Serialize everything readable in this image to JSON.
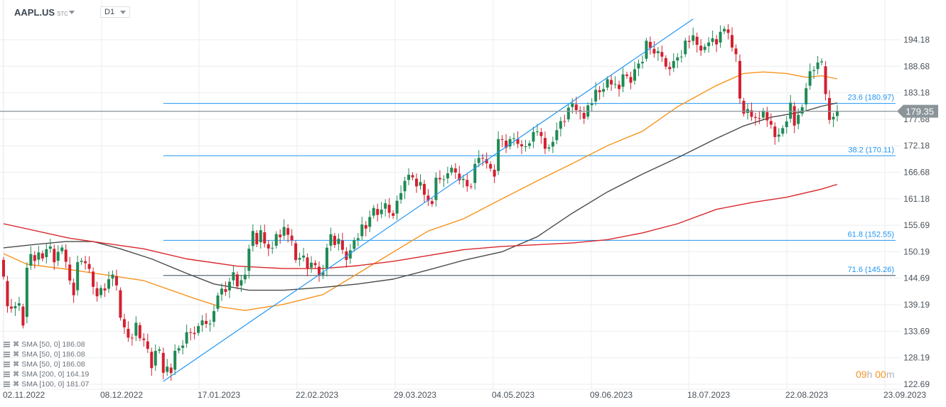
{
  "header": {
    "symbol": "AAPL.US",
    "market": "STC",
    "timeframe": "D1"
  },
  "legend": [
    {
      "label": "SMA [50,  0] 186.08"
    },
    {
      "label": "SMA [50,  0] 186.08"
    },
    {
      "label": "SMA [50,  0] 186.08"
    },
    {
      "label": "SMA [200,  0] 164.19"
    },
    {
      "label": "SMA [100,  0] 181.07"
    }
  ],
  "timer": {
    "hours": "09",
    "h": "h ",
    "minutes": "00",
    "m": "m"
  },
  "colors": {
    "up": "#1f8a55",
    "down": "#d3202f",
    "sma50": "#f7931e",
    "sma100": "#4a4a4a",
    "sma200": "#d9262a",
    "fib": "#2196f3",
    "fib_dark": "#2f4150",
    "trend": "#2196f3",
    "price_line": "#8a9499",
    "grid": "#eceef0"
  },
  "chart_data": {
    "type": "candlestick",
    "ylim": [
      122.69,
      196.9
    ],
    "y_ticks": [
      "194.18",
      "188.68",
      "183.18",
      "177.68",
      "172.18",
      "166.68",
      "161.18",
      "155.69",
      "150.19",
      "144.69",
      "139.19",
      "133.69",
      "128.19",
      "122.69"
    ],
    "x_ticks": [
      "02.11.2022",
      "08.12.2022",
      "17.01.2023",
      "22.02.2023",
      "29.03.2023",
      "04.05.2023",
      "09.06.2023",
      "18.07.2023",
      "22.08.2023",
      "23.09.2023"
    ],
    "current_price": "179.35",
    "closes": [
      145.03,
      138.88,
      138.38,
      138.92,
      139.5,
      134.87,
      146.87,
      149.7,
      148.28,
      150.04,
      148.79,
      150.72,
      151.29,
      148.01,
      150.18,
      151.07,
      148.11,
      144.22,
      141.17,
      148.03,
      148.31,
      147.81,
      146.63,
      142.91,
      140.94,
      142.65,
      142.16,
      144.49,
      145.47,
      143.21,
      136.5,
      134.51,
      132.37,
      132.3,
      135.45,
      132.23,
      131.86,
      130.03,
      126.04,
      129.61,
      129.93,
      125.07,
      126.36,
      125.02,
      129.62,
      130.15,
      130.73,
      133.49,
      133.41,
      133.11,
      134.76,
      135.94,
      135.21,
      135.27,
      137.87,
      141.11,
      142.53,
      141.86,
      143.96,
      145.93,
      143.0,
      144.29,
      145.43,
      150.82,
      154.5,
      151.73,
      154.65,
      151.92,
      150.87,
      151.01,
      153.85,
      153.2,
      155.33,
      153.71,
      152.55,
      148.48,
      148.91,
      149.4,
      146.71,
      147.92,
      147.41,
      145.31,
      145.91,
      151.03,
      153.83,
      151.6,
      152.87,
      150.59,
      148.5,
      150.47,
      152.59,
      152.99,
      155.85,
      155.0,
      157.4,
      159.28,
      157.83,
      158.93,
      160.25,
      158.28,
      157.65,
      160.77,
      162.36,
      164.9,
      166.17,
      165.63,
      163.76,
      164.66,
      162.03,
      160.8,
      160.1,
      165.56,
      165.21,
      165.23,
      166.47,
      167.63,
      166.65,
      165.02,
      165.33,
      163.77,
      163.76,
      168.41,
      169.68,
      169.59,
      168.54,
      167.45,
      165.79,
      173.57,
      173.5,
      171.77,
      173.56,
      173.75,
      172.57,
      172.07,
      172.07,
      172.69,
      175.05,
      175.16,
      174.2,
      171.56,
      171.84,
      172.99,
      175.43,
      177.3,
      177.25,
      180.09,
      180.95,
      179.58,
      179.21,
      177.82,
      180.57,
      180.96,
      183.79,
      183.31,
      183.95,
      186.01,
      184.92,
      185.01,
      183.96,
      187.0,
      186.68,
      185.27,
      188.06,
      189.25,
      189.59,
      193.97,
      192.46,
      191.33,
      191.81,
      190.68,
      188.61,
      188.08,
      189.77,
      190.54,
      190.69,
      193.99,
      193.73,
      195.1,
      193.13,
      191.94,
      192.75,
      193.62,
      194.5,
      193.22,
      195.83,
      196.45,
      195.61,
      192.58,
      191.17,
      181.99,
      178.85,
      179.8,
      178.19,
      177.97,
      177.79,
      179.46,
      177.45,
      176.57,
      174.0,
      174.49,
      175.84,
      177.23,
      181.12,
      176.38,
      178.61,
      180.19,
      184.12,
      187.65,
      187.87,
      189.46,
      189.7,
      182.91,
      177.56,
      178.18,
      179.35
    ],
    "open_first": 148.5,
    "sma": [
      {
        "name": "SMA 50",
        "value": "186.08",
        "color_key": "sma50",
        "points": [
          [
            0,
            149.8
          ],
          [
            6,
            147.6
          ],
          [
            17,
            146.5
          ],
          [
            36,
            144.2
          ],
          [
            49,
            140.5
          ],
          [
            56,
            138.7
          ],
          [
            62,
            138
          ],
          [
            72,
            139.3
          ],
          [
            82,
            141.3
          ],
          [
            91,
            145.7
          ],
          [
            100,
            150.1
          ],
          [
            109,
            154.5
          ],
          [
            118,
            157
          ],
          [
            128,
            161.2
          ],
          [
            137,
            164.9
          ],
          [
            146,
            168.5
          ],
          [
            155,
            172.2
          ],
          [
            164,
            175.2
          ],
          [
            173,
            180.3
          ],
          [
            183,
            184.7
          ],
          [
            190,
            187.2
          ],
          [
            195,
            187.5
          ],
          [
            201,
            187.2
          ],
          [
            206,
            186.4
          ],
          [
            210,
            186.7
          ],
          [
            214,
            186.08
          ]
        ]
      },
      {
        "name": "SMA 100",
        "value": "181.07",
        "color_key": "sma100",
        "points": [
          [
            0,
            151
          ],
          [
            8,
            151.7
          ],
          [
            16,
            152.3
          ],
          [
            23,
            152.3
          ],
          [
            30,
            150.8
          ],
          [
            38,
            148.7
          ],
          [
            47,
            145.7
          ],
          [
            54,
            143.5
          ],
          [
            63,
            142.2
          ],
          [
            72,
            142.2
          ],
          [
            82,
            142.8
          ],
          [
            91,
            143.5
          ],
          [
            100,
            144.5
          ],
          [
            109,
            146.4
          ],
          [
            118,
            148.4
          ],
          [
            128,
            150.2
          ],
          [
            137,
            153.3
          ],
          [
            146,
            158.2
          ],
          [
            155,
            162.6
          ],
          [
            164,
            166.3
          ],
          [
            173,
            169.7
          ],
          [
            183,
            173.7
          ],
          [
            190,
            176.3
          ],
          [
            197,
            178.1
          ],
          [
            205,
            179.2
          ],
          [
            210,
            180.4
          ],
          [
            214,
            181.07
          ]
        ]
      },
      {
        "name": "SMA 200",
        "value": "164.19",
        "color_key": "sma200",
        "points": [
          [
            0,
            156
          ],
          [
            17,
            153
          ],
          [
            36,
            150.8
          ],
          [
            47,
            148.7
          ],
          [
            60,
            147.2
          ],
          [
            72,
            146.7
          ],
          [
            82,
            146.7
          ],
          [
            91,
            147.3
          ],
          [
            100,
            148.2
          ],
          [
            109,
            149.4
          ],
          [
            118,
            150.6
          ],
          [
            128,
            151.3
          ],
          [
            146,
            152
          ],
          [
            155,
            152.7
          ],
          [
            164,
            154.1
          ],
          [
            173,
            156
          ],
          [
            183,
            159
          ],
          [
            192,
            160.4
          ],
          [
            201,
            161.5
          ],
          [
            210,
            163.2
          ],
          [
            214,
            164.19
          ]
        ]
      }
    ],
    "trendline": {
      "from": [
        41,
        123.3
      ],
      "to": [
        177,
        198.5
      ]
    },
    "fibonacci": {
      "start_bar": 41,
      "levels": [
        {
          "label": "23.6 (180.97)",
          "price": 180.97,
          "color_key": "fib"
        },
        {
          "label": "38.2 (170.11)",
          "price": 170.11,
          "color_key": "fib"
        },
        {
          "label": "61.8 (152.55)",
          "price": 152.55,
          "color_key": "fib"
        },
        {
          "label": "71.6 (145.26)",
          "price": 145.26,
          "color_key": "fib_dark"
        }
      ]
    }
  }
}
